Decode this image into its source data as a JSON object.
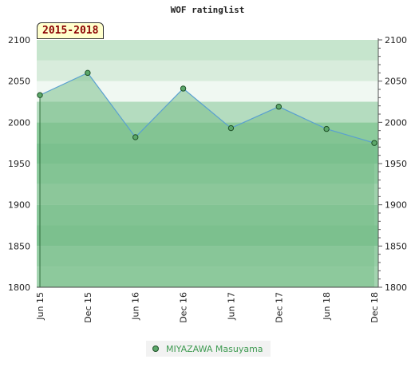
{
  "title": "WOF ratinglist",
  "period_label": "2015-2018",
  "legend": {
    "name": "MIYAZAWA Masuyama"
  },
  "colors": {
    "line": "#5aa0d0",
    "marker": "#5ca86a",
    "area": "#7cc08c",
    "legend_text": "#3f9b52"
  },
  "chart_data": {
    "type": "line",
    "title": "WOF ratinglist",
    "categories": [
      "Jun 15",
      "Dec 15",
      "Jun 16",
      "Dec 16",
      "Jun 17",
      "Dec 17",
      "Jun 18",
      "Dec 18"
    ],
    "series": [
      {
        "name": "MIYAZAWA Masuyama",
        "values": [
          2033,
          2060,
          1982,
          2041,
          1993,
          2019,
          1992,
          1975
        ]
      }
    ],
    "ylim": [
      1800,
      2100
    ],
    "yticks": [
      1800,
      1850,
      1900,
      1950,
      2000,
      2050,
      2100
    ],
    "grid": true,
    "legend_position": "bottom"
  }
}
